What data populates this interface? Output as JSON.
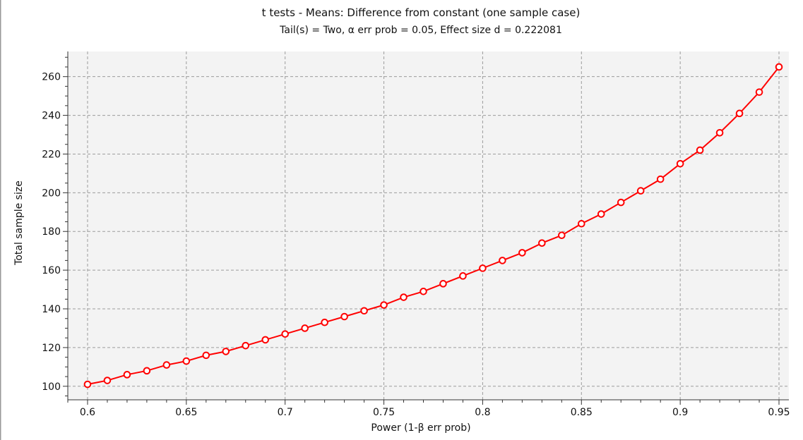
{
  "chart_data": {
    "type": "line",
    "title": "t tests - Means: Difference from constant (one sample case)",
    "subtitle": "Tail(s) = Two, α err prob = 0.05, Effect size d = 0.222081",
    "xlabel": "Power (1-β err prob)",
    "ylabel": "Total sample size",
    "xlim": [
      0.59,
      0.955
    ],
    "ylim": [
      93,
      273
    ],
    "x_ticks": [
      0.6,
      0.65,
      0.7,
      0.75,
      0.8,
      0.85,
      0.9,
      0.95
    ],
    "x_tick_labels": [
      "0.6",
      "0.65",
      "0.7",
      "0.75",
      "0.8",
      "0.85",
      "0.9",
      "0.95"
    ],
    "y_ticks": [
      100,
      120,
      140,
      160,
      180,
      200,
      220,
      240,
      260
    ],
    "y_tick_labels": [
      "100",
      "120",
      "140",
      "160",
      "180",
      "200",
      "220",
      "240",
      "260"
    ],
    "grid": true,
    "line_color": "#ff0000",
    "marker": "open-circle",
    "x": [
      0.6,
      0.61,
      0.62,
      0.63,
      0.64,
      0.65,
      0.66,
      0.67,
      0.68,
      0.69,
      0.7,
      0.71,
      0.72,
      0.73,
      0.74,
      0.75,
      0.76,
      0.77,
      0.78,
      0.79,
      0.8,
      0.81,
      0.82,
      0.83,
      0.84,
      0.85,
      0.86,
      0.87,
      0.88,
      0.89,
      0.9,
      0.91,
      0.92,
      0.93,
      0.94,
      0.95
    ],
    "y": [
      101,
      103,
      106,
      108,
      111,
      113,
      116,
      118,
      121,
      124,
      127,
      130,
      133,
      136,
      139,
      142,
      146,
      149,
      153,
      157,
      161,
      165,
      169,
      174,
      178,
      184,
      189,
      195,
      201,
      207,
      215,
      222,
      231,
      241,
      252,
      265
    ]
  }
}
